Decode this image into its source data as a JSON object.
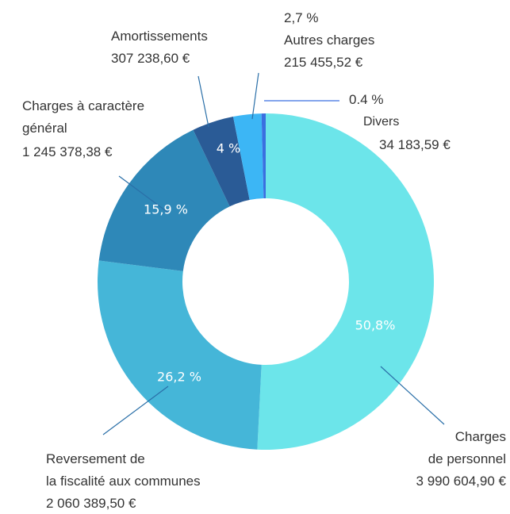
{
  "chart_data": {
    "type": "donut",
    "categories": [
      "Charges\nde personnel",
      "Reversement de\nla fiscalité aux communes",
      "Charges à caractère\ngénéral",
      "Amortissements",
      "Autres charges",
      "Divers"
    ],
    "values": [
      50.8,
      26.2,
      15.9,
      4,
      2.7,
      0.4
    ],
    "value_labels": [
      "50,8%",
      "26,2 %",
      "15,9 %",
      "4 %",
      "2,7 %",
      "0.4 %"
    ],
    "amount_labels": [
      "3 990 604,90 €",
      "2 060 389,50 €",
      "1 245 378,38 €",
      "307 238,60 €",
      "215 455,52 €",
      "34 183,59 €"
    ],
    "colors": [
      "#6ce5ea",
      "#45b6d8",
      "#2e88b8",
      "#2a5b96",
      "#3cb6f5",
      "#3a6fe0"
    ]
  }
}
